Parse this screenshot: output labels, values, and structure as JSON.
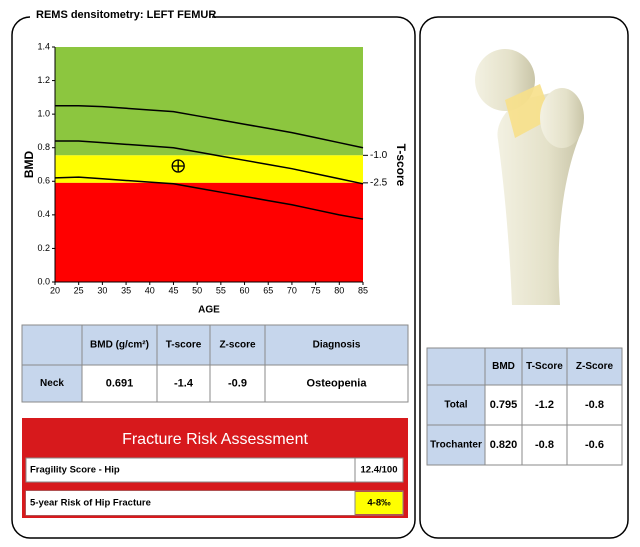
{
  "header": {
    "title": "REMS densitometry: LEFT FEMUR"
  },
  "chart_data": {
    "type": "line",
    "xlabel": "AGE",
    "ylabel": "BMD",
    "y2label": "T-score",
    "x": [
      20,
      25,
      30,
      35,
      40,
      45,
      50,
      55,
      60,
      65,
      70,
      75,
      80,
      85
    ],
    "series": [
      {
        "color": "#000000",
        "values": [
          1.05,
          1.05,
          1.045,
          1.035,
          1.025,
          1.015,
          0.99,
          0.965,
          0.94,
          0.915,
          0.89,
          0.86,
          0.83,
          0.8
        ]
      },
      {
        "color": "#000000",
        "values": [
          0.84,
          0.84,
          0.83,
          0.82,
          0.81,
          0.8,
          0.775,
          0.75,
          0.725,
          0.7,
          0.675,
          0.645,
          0.615,
          0.585
        ]
      },
      {
        "color": "#000000",
        "values": [
          0.62,
          0.625,
          0.615,
          0.605,
          0.595,
          0.585,
          0.56,
          0.535,
          0.51,
          0.485,
          0.46,
          0.43,
          0.4,
          0.375
        ]
      }
    ],
    "point": {
      "x": 46,
      "y": 0.691
    },
    "xlim": [
      20,
      85
    ],
    "xticks": [
      20,
      25,
      30,
      35,
      40,
      45,
      50,
      55,
      60,
      65,
      70,
      75,
      80,
      85
    ],
    "ylim": [
      0,
      1.4
    ],
    "yticks": [
      {
        "value": 0,
        "label": "0.0"
      },
      0.2,
      0.4,
      0.6,
      0.8,
      {
        "value": 1,
        "label": "1.0"
      },
      1.2,
      1.4
    ],
    "y2lim": [
      -7.9,
      4.9
    ],
    "y2ticks": [
      {
        "value": -1,
        "label": "-1.0"
      },
      {
        "value": -2.5,
        "label": "-2.5"
      }
    ],
    "zone_colors": [
      "#8cc63f",
      "#ffff00",
      "#ff0000"
    ]
  },
  "neck_table": {
    "columns": [
      "BMD (g/cm²)",
      "T-score",
      "Z-score",
      "Diagnosis"
    ],
    "rows": [
      {
        "label": "Neck",
        "cells": [
          "0.691",
          "-1.4",
          "-0.9",
          "Osteopenia"
        ]
      }
    ]
  },
  "fracture_risk": {
    "title": "Fracture Risk Assessment",
    "rows": [
      {
        "label": "Fragility Score - Hip",
        "value": "12.4/100"
      },
      {
        "label": "5-year Risk of Hip Fracture",
        "value": "4-8‰"
      }
    ]
  },
  "region_table": {
    "columns": [
      "BMD",
      "T-Score",
      "Z-Score"
    ],
    "rows": [
      {
        "label": "Total",
        "cells": [
          "0.795",
          "-1.2",
          "-0.8"
        ]
      },
      {
        "label": "Trochanter",
        "cells": [
          "0.820",
          "-0.8",
          "-0.6"
        ]
      }
    ]
  }
}
